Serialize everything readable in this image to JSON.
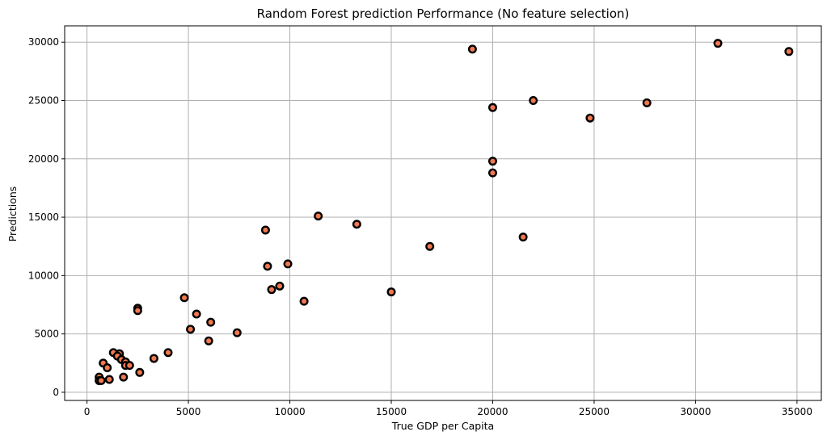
{
  "chart_data": {
    "type": "scatter",
    "title": "Random Forest prediction Performance (No feature selection)",
    "xlabel": "True GDP per Capita",
    "ylabel": "Predictions",
    "xlim": [
      -1100,
      36200
    ],
    "ylim": [
      -700,
      31400
    ],
    "xticks": [
      0,
      5000,
      10000,
      15000,
      20000,
      25000,
      30000,
      35000
    ],
    "yticks": [
      0,
      5000,
      10000,
      15000,
      20000,
      25000,
      30000
    ],
    "grid": true,
    "marker_face_color": "#f07850",
    "marker_edge_color": "#000000",
    "points": [
      {
        "x": 19000,
        "y": 29400
      },
      {
        "x": 31100,
        "y": 29900
      },
      {
        "x": 34600,
        "y": 29200
      },
      {
        "x": 20000,
        "y": 24400
      },
      {
        "x": 22000,
        "y": 25000
      },
      {
        "x": 24800,
        "y": 23500
      },
      {
        "x": 27600,
        "y": 24800
      },
      {
        "x": 20000,
        "y": 19800
      },
      {
        "x": 20000,
        "y": 18800
      },
      {
        "x": 11400,
        "y": 15100
      },
      {
        "x": 13300,
        "y": 14400
      },
      {
        "x": 8800,
        "y": 13900
      },
      {
        "x": 21500,
        "y": 13300
      },
      {
        "x": 16900,
        "y": 12500
      },
      {
        "x": 8900,
        "y": 10800
      },
      {
        "x": 9900,
        "y": 11000
      },
      {
        "x": 9100,
        "y": 8800
      },
      {
        "x": 9500,
        "y": 9100
      },
      {
        "x": 15000,
        "y": 8600
      },
      {
        "x": 10700,
        "y": 7800
      },
      {
        "x": 4800,
        "y": 8100
      },
      {
        "x": 2500,
        "y": 7200
      },
      {
        "x": 2500,
        "y": 7000
      },
      {
        "x": 5400,
        "y": 6700
      },
      {
        "x": 6100,
        "y": 6000
      },
      {
        "x": 5100,
        "y": 5400
      },
      {
        "x": 7400,
        "y": 5100
      },
      {
        "x": 6000,
        "y": 4400
      },
      {
        "x": 4000,
        "y": 3400
      },
      {
        "x": 1300,
        "y": 3400
      },
      {
        "x": 1600,
        "y": 3300
      },
      {
        "x": 1500,
        "y": 3100
      },
      {
        "x": 1700,
        "y": 2800
      },
      {
        "x": 3300,
        "y": 2900
      },
      {
        "x": 800,
        "y": 2500
      },
      {
        "x": 1900,
        "y": 2600
      },
      {
        "x": 1900,
        "y": 2300
      },
      {
        "x": 2100,
        "y": 2300
      },
      {
        "x": 1000,
        "y": 2100
      },
      {
        "x": 2600,
        "y": 1700
      },
      {
        "x": 1800,
        "y": 1300
      },
      {
        "x": 600,
        "y": 1300
      },
      {
        "x": 1100,
        "y": 1100
      },
      {
        "x": 600,
        "y": 1000
      },
      {
        "x": 700,
        "y": 1000
      }
    ]
  }
}
